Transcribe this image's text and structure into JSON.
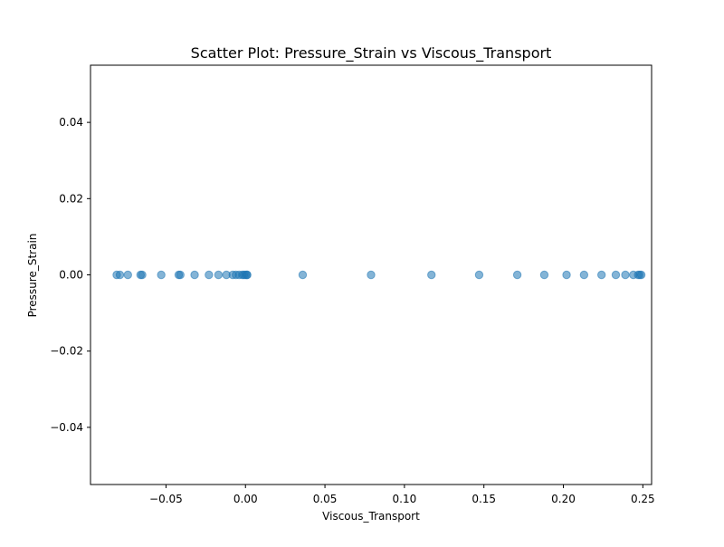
{
  "chart_data": {
    "type": "scatter",
    "title": "Scatter Plot: Pressure_Strain vs Viscous_Transport",
    "xlabel": "Viscous_Transport",
    "ylabel": "Pressure_Strain",
    "xlim": [
      -0.0975,
      0.2555
    ],
    "ylim": [
      -0.055,
      0.055
    ],
    "grid": false,
    "x_ticks": [
      -0.05,
      0.0,
      0.05,
      0.1,
      0.15,
      0.2,
      0.25
    ],
    "x_tick_labels": [
      "−0.05",
      "0.00",
      "0.05",
      "0.10",
      "0.15",
      "0.20",
      "0.25"
    ],
    "y_ticks": [
      -0.04,
      -0.02,
      0.0,
      0.02,
      0.04
    ],
    "y_tick_labels": [
      "−0.04",
      "−0.02",
      "0.00",
      "0.02",
      "0.04"
    ],
    "marker_color": "#1f77b4",
    "marker_alpha": 0.55,
    "series": [
      {
        "x": [
          -0.081,
          -0.079,
          -0.074,
          -0.066,
          -0.065,
          -0.053,
          -0.042,
          -0.041,
          -0.032,
          -0.023,
          -0.017,
          -0.012,
          -0.008,
          -0.006,
          -0.004,
          -0.002,
          -0.001,
          0.0,
          0.001,
          0.001,
          0.036,
          0.079,
          0.117,
          0.147,
          0.171,
          0.188,
          0.202,
          0.213,
          0.224,
          0.233,
          0.239,
          0.244,
          0.247,
          0.248,
          0.249
        ],
        "y": [
          0,
          0,
          0,
          0,
          0,
          0,
          0,
          0,
          0,
          0,
          0,
          0,
          0,
          0,
          0,
          0,
          0,
          0,
          0,
          0,
          0,
          0,
          0,
          0,
          0,
          0,
          0,
          0,
          0,
          0,
          0,
          0,
          0,
          0,
          0
        ]
      }
    ]
  }
}
